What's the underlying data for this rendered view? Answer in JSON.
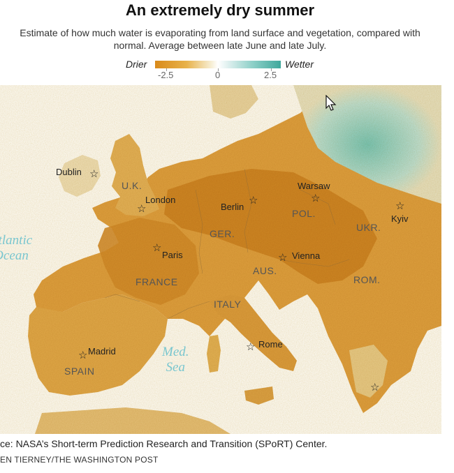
{
  "title": "An extremely dry summer",
  "subtitle": "Estimate of how much water is evaporating from land surface and vegetation, compared with normal. Average between late June and late July.",
  "legend": {
    "drier_label": "Drier",
    "wetter_label": "Wetter",
    "ticks": [
      "-2.5",
      "0",
      "2.5"
    ],
    "colors": {
      "dry": "#d98a1a",
      "neutral": "#ffffff",
      "wet": "#3fa89c"
    }
  },
  "map": {
    "cities": [
      {
        "name": "Dublin"
      },
      {
        "name": "London"
      },
      {
        "name": "Berlin"
      },
      {
        "name": "Warsaw"
      },
      {
        "name": "Kyiv"
      },
      {
        "name": "Paris"
      },
      {
        "name": "Vienna"
      },
      {
        "name": "Madrid"
      },
      {
        "name": "Rome"
      },
      {
        "name": ""
      }
    ],
    "countries": [
      "U.K.",
      "GER.",
      "POL.",
      "UKR.",
      "FRANCE",
      "AUS.",
      "ROM.",
      "ITALY",
      "SPAIN"
    ],
    "seas": [
      {
        "line1": "Atlantic",
        "line2": "Ocean"
      },
      {
        "line1": "Med.",
        "line2": "Sea"
      }
    ],
    "colors": {
      "dry": "#d9962e",
      "very_dry": "#c97a16",
      "land_light": "#efd9a6",
      "wet": "#8dcfc6",
      "sea": "#ffffff"
    }
  },
  "footer": {
    "source": "ce: NASA’s Short-term Prediction Research and Transition (SPoRT) Center.",
    "credit": "EN TIERNEY/THE WASHINGTON POST"
  }
}
